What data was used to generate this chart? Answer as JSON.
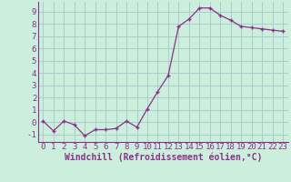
{
  "x": [
    0,
    1,
    2,
    3,
    4,
    5,
    6,
    7,
    8,
    9,
    10,
    11,
    12,
    13,
    14,
    15,
    16,
    17,
    18,
    19,
    20,
    21,
    22,
    23
  ],
  "y": [
    0.1,
    -0.7,
    0.1,
    -0.2,
    -1.1,
    -0.6,
    -0.6,
    -0.5,
    0.1,
    -0.4,
    1.1,
    2.5,
    3.8,
    7.8,
    8.4,
    9.3,
    9.3,
    8.7,
    8.3,
    7.8,
    7.7,
    7.6,
    7.5,
    7.4
  ],
  "line_color": "#883388",
  "marker": "P",
  "background_color": "#cceedd",
  "grid_color": "#aacccc",
  "ylabel_values": [
    -1,
    0,
    1,
    2,
    3,
    4,
    5,
    6,
    7,
    8,
    9
  ],
  "xlabel": "Windchill (Refroidissement éolien,°C)",
  "ylim": [
    -1.6,
    9.8
  ],
  "xlim": [
    -0.5,
    23.5
  ],
  "tick_fontsize": 6.5,
  "xlabel_fontsize": 7.0
}
